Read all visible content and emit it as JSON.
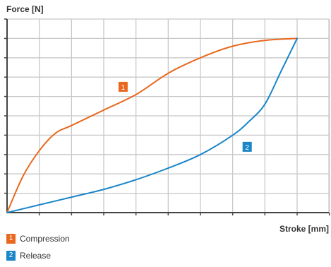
{
  "chart_data": {
    "type": "line",
    "ylabel": "Force [N]",
    "xlabel": "Stroke [mm]",
    "grid": true,
    "xlim": [
      0,
      9
    ],
    "ylim": [
      0,
      10
    ],
    "series": [
      {
        "name": "Compression",
        "badge": "1",
        "color": "#e8681f",
        "x": [
          0,
          0.5,
          1,
          1.5,
          2,
          3,
          4,
          5,
          6,
          7,
          8,
          9
        ],
        "y": [
          0,
          1.9,
          3.2,
          4.1,
          4.5,
          5.3,
          6.1,
          7.2,
          8.0,
          8.6,
          8.9,
          9.0
        ]
      },
      {
        "name": "Release",
        "badge": "2",
        "color": "#1a85c7",
        "x": [
          0,
          1,
          2,
          3,
          4,
          5,
          6,
          7,
          7.5,
          8,
          8.5,
          9
        ],
        "y": [
          0,
          0.4,
          0.8,
          1.2,
          1.7,
          2.3,
          3.0,
          4.0,
          4.7,
          5.6,
          7.3,
          9.0
        ]
      }
    ],
    "annotations": [
      {
        "series": 0,
        "text": "1",
        "x": 3.6,
        "y": 6.5
      },
      {
        "series": 1,
        "text": "2",
        "x": 7.45,
        "y": 3.4
      }
    ],
    "legend": {
      "placement": "bottom-left",
      "items": [
        {
          "badge": "1",
          "label": "Compression",
          "color": "#e8681f"
        },
        {
          "badge": "2",
          "label": "Release",
          "color": "#1a85c7"
        }
      ]
    }
  }
}
